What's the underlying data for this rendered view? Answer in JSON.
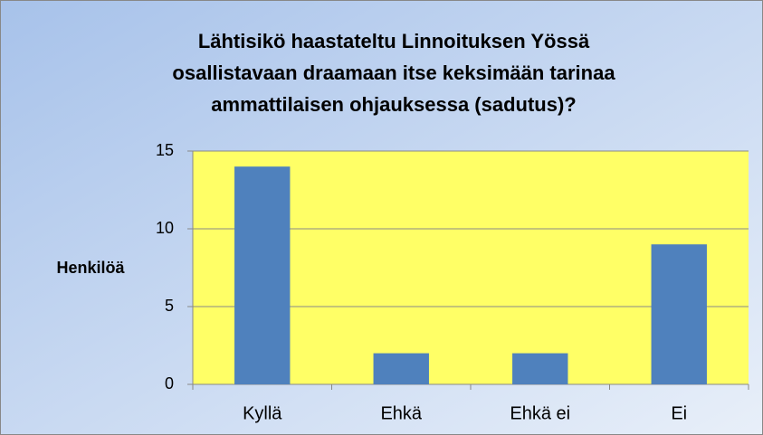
{
  "chart_data": {
    "type": "bar",
    "title": [
      "Lähtisikö haastateltu Linnoituksen Yössä",
      "osallistavaan draamaan itse keksimään tarinaa",
      "ammattilaisen ohjauksessa (sadutus)?"
    ],
    "y_label": "Henkilöä",
    "categories": [
      "Kyllä",
      "Ehkä",
      "Ehkä ei",
      "Ei"
    ],
    "values": [
      14,
      2,
      2,
      9
    ],
    "color": "#4f81bd",
    "ylim": [
      0,
      15
    ],
    "yticks": [
      0,
      5,
      10,
      15
    ],
    "grid": true
  }
}
